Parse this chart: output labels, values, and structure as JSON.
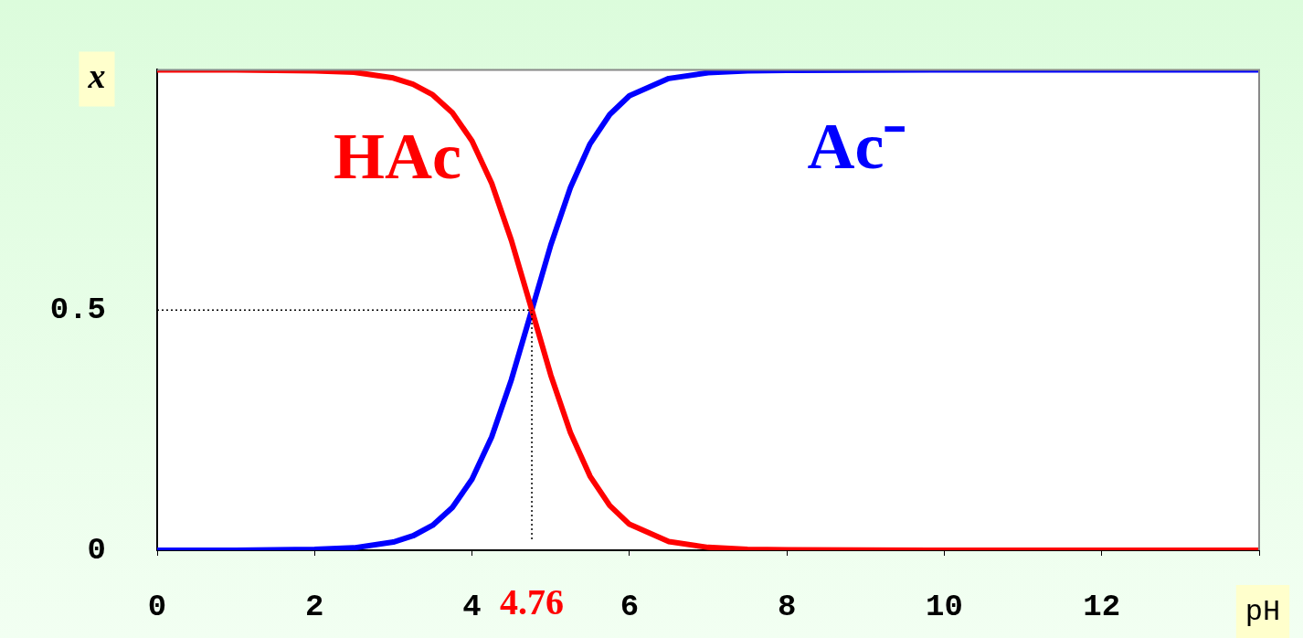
{
  "chart_data": {
    "type": "line",
    "xlabel": "pH",
    "ylabel": "x",
    "xlim": [
      0,
      14
    ],
    "xticks": [
      0,
      2,
      4,
      6,
      8,
      10,
      12,
      {
        "value": 14,
        "label": null
      }
    ],
    "ylim": [
      0,
      1
    ],
    "yticks": [
      0,
      0.5
    ],
    "grid": false,
    "legend": false,
    "marker": "none",
    "line_style": "solid",
    "series": [
      {
        "name": "HAc",
        "color": "#ff0000",
        "x": [
          0,
          1,
          2,
          2.5,
          3,
          3.25,
          3.5,
          3.75,
          4,
          4.25,
          4.5,
          4.76,
          5,
          5.25,
          5.5,
          5.75,
          6,
          6.5,
          7,
          7.5,
          8,
          10,
          14
        ],
        "values": [
          1,
          1,
          0.998,
          0.995,
          0.983,
          0.97,
          0.948,
          0.911,
          0.852,
          0.764,
          0.645,
          0.5,
          0.365,
          0.245,
          0.154,
          0.093,
          0.054,
          0.018,
          0.006,
          0.002,
          0.001,
          0,
          0
        ]
      },
      {
        "name": "Ac⁻",
        "color": "#0000ff",
        "x": [
          0,
          1,
          2,
          2.5,
          3,
          3.25,
          3.5,
          3.75,
          4,
          4.25,
          4.5,
          4.76,
          5,
          5.25,
          5.5,
          5.75,
          6,
          6.5,
          7,
          7.5,
          8,
          10,
          14
        ],
        "values": [
          0,
          0,
          0.002,
          0.005,
          0.017,
          0.03,
          0.052,
          0.089,
          0.148,
          0.236,
          0.355,
          0.5,
          0.635,
          0.755,
          0.846,
          0.907,
          0.946,
          0.982,
          0.994,
          0.998,
          0.999,
          1,
          1
        ]
      }
    ],
    "ref_lines": [
      {
        "axis": "x",
        "value": 4.76,
        "label": "4.76",
        "color": "#000000",
        "line_style": "dotted"
      },
      {
        "axis": "y",
        "value": 0.5,
        "label": null,
        "color": "#000000",
        "line_style": "dotted"
      }
    ]
  }
}
